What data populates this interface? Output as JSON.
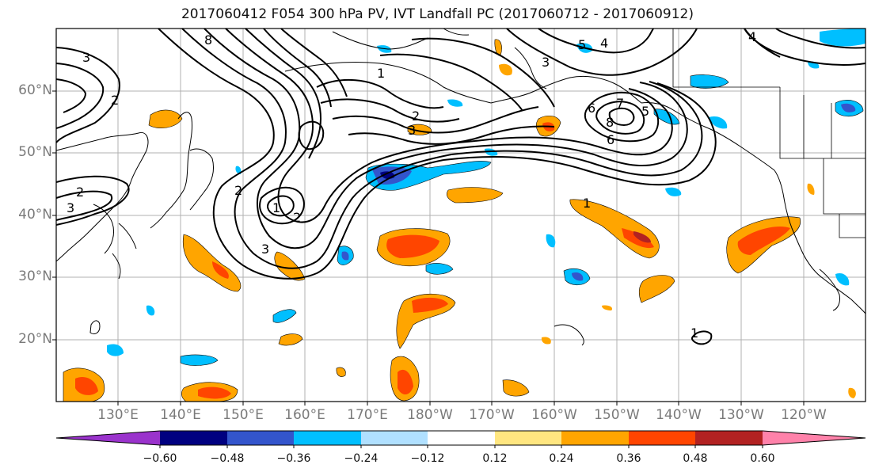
{
  "title": "2017060412 F054 300 hPa PV, IVT Landfall PC (2017060712 - 2017060912)",
  "lat_labels": [
    "60°N",
    "50°N",
    "40°N",
    "30°N",
    "20°N"
  ],
  "lon_labels": [
    "130°E",
    "140°E",
    "150°E",
    "160°E",
    "170°E",
    "180°W",
    "170°W",
    "160°W",
    "150°W",
    "140°W",
    "130°W",
    "120°W"
  ],
  "colorbar": {
    "tick_labels": [
      "−0.60",
      "−0.48",
      "−0.36",
      "−0.24",
      "−0.12",
      "0.12",
      "0.24",
      "0.36",
      "0.48",
      "0.60"
    ],
    "colors": [
      "#9a33cc",
      "#000080",
      "#3355cc",
      "#00bfff",
      "#b0e0ff",
      "#ffffff",
      "#ffe680",
      "#ffa500",
      "#ff4500",
      "#b22222",
      "#ff82aa"
    ]
  },
  "contour_labels": [
    "3",
    "8",
    "1",
    "2",
    "3",
    "2",
    "3",
    "5",
    "4",
    "8",
    "6",
    "7",
    "5",
    "6",
    "2",
    "1",
    "2",
    "3",
    "1",
    "2",
    "3",
    "1",
    "4"
  ],
  "colors": {
    "contour": "#000000",
    "coast": "#000000",
    "grid": "#b0b0b0"
  }
}
